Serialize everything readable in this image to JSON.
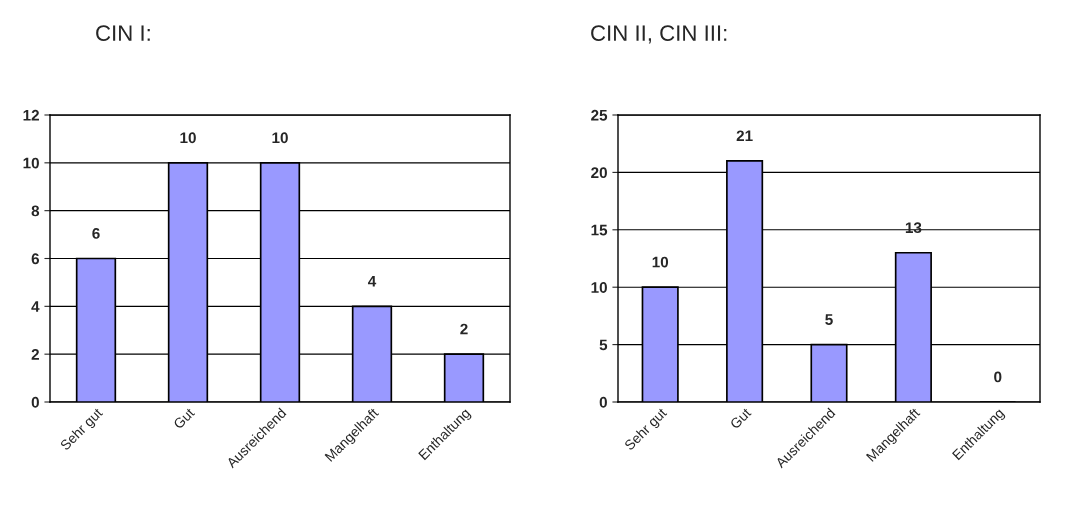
{
  "chart_data": [
    {
      "type": "bar",
      "title": "CIN I:",
      "categories": [
        "Sehr gut",
        "Gut",
        "Ausreichend",
        "Mangelhaft",
        "Enthaltung"
      ],
      "values": [
        6,
        10,
        10,
        4,
        2
      ],
      "color": "#9999ff",
      "ylim": [
        0,
        12
      ],
      "yticks": [
        0,
        2,
        4,
        6,
        8,
        10,
        12
      ],
      "grid": "y",
      "data_labels": true
    },
    {
      "type": "bar",
      "title": "CIN II, CIN III:",
      "categories": [
        "Sehr gut",
        "Gut",
        "Ausreichend",
        "Mangelhaft",
        "Enthaltung"
      ],
      "values": [
        10,
        21,
        5,
        13,
        0
      ],
      "color": "#9999ff",
      "ylim": [
        0,
        25
      ],
      "yticks": [
        0,
        5,
        10,
        15,
        20,
        25
      ],
      "grid": "y",
      "data_labels": true
    }
  ]
}
